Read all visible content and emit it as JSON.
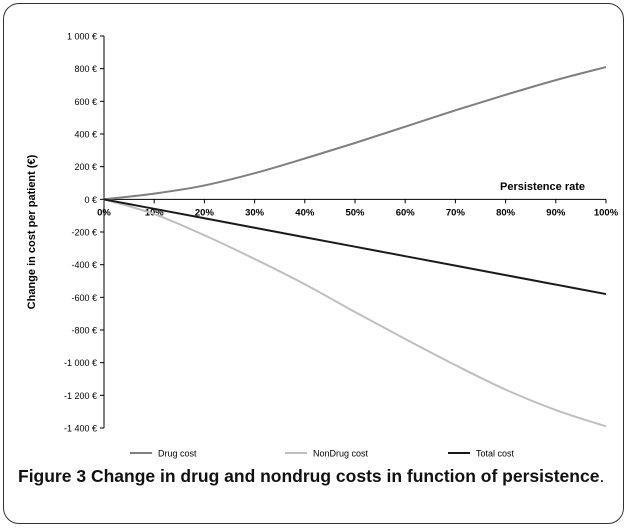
{
  "caption": {
    "label": "Figure 3",
    "text": "Change in drug and nondrug costs in function of persistence",
    "end": "."
  },
  "chart_data": {
    "type": "line",
    "xlabel": "Persistence rate",
    "ylabel": "Change in cost per patient (€)",
    "x": [
      0,
      10,
      20,
      30,
      40,
      50,
      60,
      70,
      80,
      90,
      100
    ],
    "x_tick_labels": [
      "0%",
      "10%",
      "20%",
      "30%",
      "40%",
      "50%",
      "60%",
      "70%",
      "80%",
      "90%",
      "100%"
    ],
    "xlim": [
      0,
      100
    ],
    "ylim": [
      -1400,
      1000
    ],
    "y_ticks": [
      1000,
      800,
      600,
      400,
      200,
      0,
      -200,
      -400,
      -600,
      -800,
      -1000,
      -1200,
      -1400
    ],
    "y_tick_labels": [
      "1 000 €",
      "800 €",
      "600 €",
      "400 €",
      "200 €",
      "0 €",
      "-200 €",
      "-400 €",
      "-600 €",
      "-800 €",
      "-1 000 €",
      "-1 200 €",
      "-1 400 €"
    ],
    "grid": false,
    "legend_position": "bottom",
    "series": [
      {
        "name": "Drug cost",
        "color": "#7f7f7f",
        "values": [
          0,
          35,
          85,
          160,
          250,
          345,
          445,
          545,
          640,
          730,
          810
        ]
      },
      {
        "name": "NonDrug cost",
        "color": "#bfbfbf",
        "values": [
          0,
          -90,
          -220,
          -365,
          -520,
          -690,
          -855,
          -1015,
          -1165,
          -1290,
          -1390
        ]
      },
      {
        "name": "Total cost",
        "color": "#1a1a1a",
        "values": [
          0,
          -58,
          -116,
          -174,
          -232,
          -290,
          -348,
          -406,
          -464,
          -522,
          -580
        ]
      }
    ]
  }
}
